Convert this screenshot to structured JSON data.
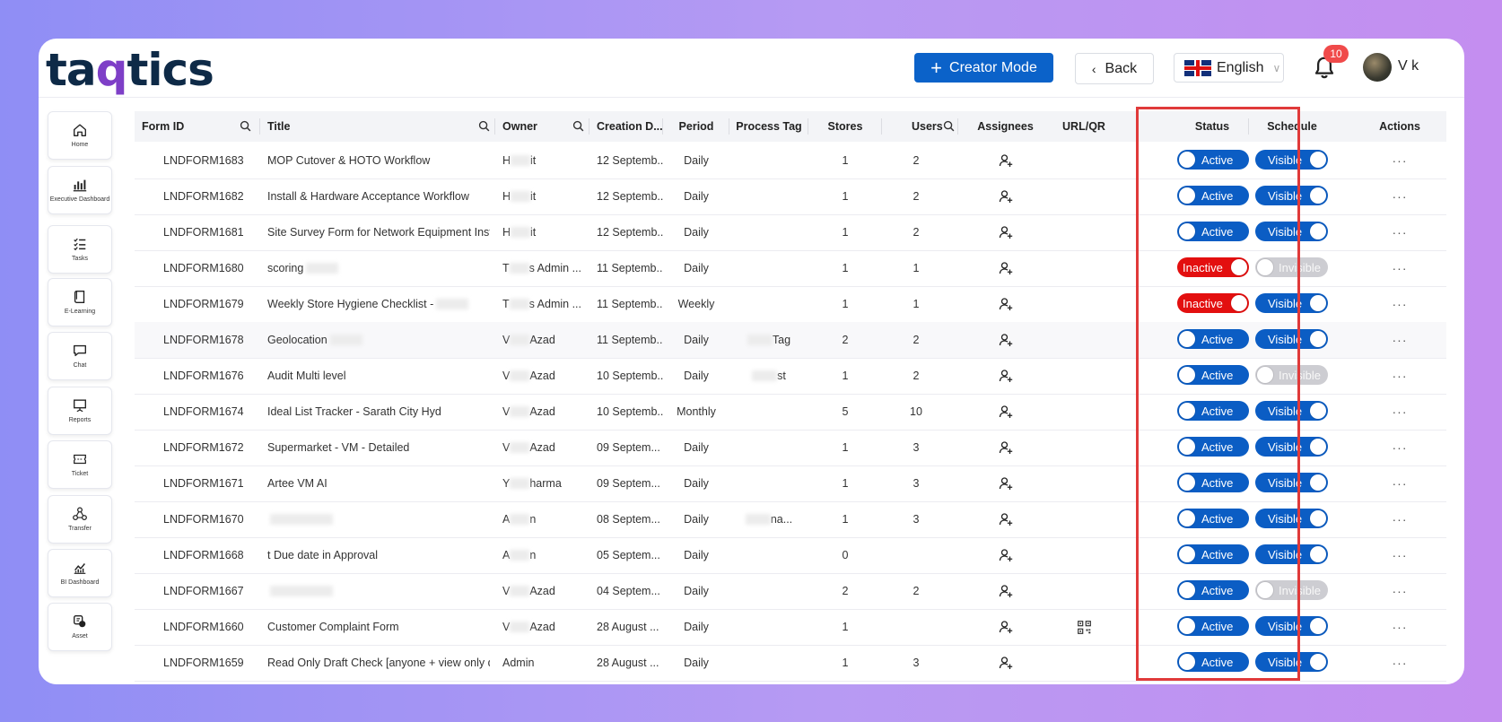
{
  "brand": {
    "logo_pre": "taq",
    "logo_q": "q",
    "logo_text": "tics"
  },
  "header": {
    "creator_label": "Creator Mode",
    "back_label": "Back",
    "language": "English",
    "notification_count": "10",
    "username": "V     k"
  },
  "sidebar": {
    "items": [
      {
        "label": "Home",
        "icon": "home-icon"
      },
      {
        "label": "Executive Dashboard",
        "icon": "bar-chart-icon"
      },
      {
        "label": "Tasks",
        "icon": "task-list-icon"
      },
      {
        "label": "E-Learning",
        "icon": "book-icon"
      },
      {
        "label": "Chat",
        "icon": "chat-icon"
      },
      {
        "label": "Reports",
        "icon": "presentation-icon"
      },
      {
        "label": "Ticket",
        "icon": "ticket-icon"
      },
      {
        "label": "Transfer",
        "icon": "transfer-icon"
      },
      {
        "label": "BI Dashboard",
        "icon": "line-chart-icon"
      },
      {
        "label": "Asset",
        "icon": "asset-icon"
      }
    ]
  },
  "table": {
    "columns": {
      "form_id": "Form ID",
      "title": "Title",
      "owner": "Owner",
      "creation": "Creation D...",
      "period": "Period",
      "process_tag": "Process Tag",
      "stores": "Stores",
      "users": "Users",
      "assignees": "Assignees",
      "url_qr": "URL/QR",
      "status": "Status",
      "schedule": "Schedule",
      "actions": "Actions"
    },
    "actions_glyph": "···",
    "rows": [
      {
        "id": "LNDFORM1683",
        "title": "MOP Cutover & HOTO Workflow",
        "owner_a": "H",
        "owner_b": "it",
        "date": "12 Septemb...",
        "period": "Daily",
        "tag": "",
        "stores": "1",
        "users": "2",
        "qr": false,
        "status": "Active",
        "schedule": "Visible"
      },
      {
        "id": "LNDFORM1682",
        "title": "Install & Hardware Acceptance Workflow",
        "owner_a": "H",
        "owner_b": "it",
        "date": "12 Septemb...",
        "period": "Daily",
        "tag": "",
        "stores": "1",
        "users": "2",
        "qr": false,
        "status": "Active",
        "schedule": "Visible"
      },
      {
        "id": "LNDFORM1681",
        "title": "Site Survey Form for Network Equipment Inst...",
        "owner_a": "H",
        "owner_b": "it",
        "date": "12 Septemb...",
        "period": "Daily",
        "tag": "",
        "stores": "1",
        "users": "2",
        "qr": false,
        "status": "Active",
        "schedule": "Visible"
      },
      {
        "id": "LNDFORM1680",
        "title": "scoring",
        "owner_a": "T",
        "owner_b": "s Admin ...",
        "date": "11 Septemb...",
        "period": "Daily",
        "tag": "",
        "stores": "1",
        "users": "1",
        "qr": false,
        "status": "Inactive",
        "schedule": "Invisible"
      },
      {
        "id": "LNDFORM1679",
        "title": "Weekly Store Hygiene Checklist - ",
        "owner_a": "T",
        "owner_b": "s Admin ...",
        "date": "11 Septemb...",
        "period": "Weekly",
        "tag": "",
        "stores": "1",
        "users": "1",
        "qr": false,
        "status": "Inactive",
        "schedule": "Visible"
      },
      {
        "id": "LNDFORM1678",
        "title": "Geolocation",
        "owner_a": "V",
        "owner_b": "Azad",
        "date": "11 Septemb...",
        "period": "Daily",
        "tag": "Tag",
        "stores": "2",
        "users": "2",
        "qr": false,
        "status": "Active",
        "schedule": "Visible"
      },
      {
        "id": "LNDFORM1676",
        "title": "Audit Multi level",
        "owner_a": "V",
        "owner_b": "Azad",
        "date": "10 Septemb...",
        "period": "Daily",
        "tag": "st",
        "stores": "1",
        "users": "2",
        "qr": false,
        "status": "Active",
        "schedule": "Invisible"
      },
      {
        "id": "LNDFORM1674",
        "title": "Ideal List Tracker - Sarath City Hyd",
        "owner_a": "V",
        "owner_b": "Azad",
        "date": "10 Septemb...",
        "period": "Monthly",
        "tag": "",
        "stores": "5",
        "users": "10",
        "qr": false,
        "status": "Active",
        "schedule": "Visible"
      },
      {
        "id": "LNDFORM1672",
        "title": "Supermarket - VM - Detailed",
        "owner_a": "V",
        "owner_b": "Azad",
        "date": "09 Septem...",
        "period": "Daily",
        "tag": "",
        "stores": "1",
        "users": "3",
        "qr": false,
        "status": "Active",
        "schedule": "Visible"
      },
      {
        "id": "LNDFORM1671",
        "title": "Artee VM AI",
        "owner_a": "Y",
        "owner_b": "harma",
        "date": "09 Septem...",
        "period": "Daily",
        "tag": "",
        "stores": "1",
        "users": "3",
        "qr": false,
        "status": "Active",
        "schedule": "Visible"
      },
      {
        "id": "LNDFORM1670",
        "title": "",
        "owner_a": "A",
        "owner_b": "n",
        "date": "08 Septem...",
        "period": "Daily",
        "tag": "na...",
        "stores": "1",
        "users": "3",
        "qr": false,
        "status": "Active",
        "schedule": "Visible"
      },
      {
        "id": "LNDFORM1668",
        "title": "t Due date in Approval",
        "owner_a": "A",
        "owner_b": "n",
        "date": "05 Septem...",
        "period": "Daily",
        "tag": "",
        "stores": "0",
        "users": "",
        "qr": false,
        "status": "Active",
        "schedule": "Visible"
      },
      {
        "id": "LNDFORM1667",
        "title": "",
        "owner_a": "V",
        "owner_b": "Azad",
        "date": "04 Septem...",
        "period": "Daily",
        "tag": "",
        "stores": "2",
        "users": "2",
        "qr": false,
        "status": "Active",
        "schedule": "Invisible"
      },
      {
        "id": "LNDFORM1660",
        "title": "Customer Complaint Form",
        "owner_a": "V",
        "owner_b": "Azad",
        "date": "28 August ...",
        "period": "Daily",
        "tag": "",
        "stores": "1",
        "users": "",
        "qr": true,
        "status": "Active",
        "schedule": "Visible"
      },
      {
        "id": "LNDFORM1659",
        "title": "Read Only Draft Check [anyone + view only d...",
        "owner_a": "Admin",
        "owner_b": "",
        "date": "28 August ...",
        "period": "Daily",
        "tag": "",
        "stores": "1",
        "users": "3",
        "qr": false,
        "status": "Active",
        "schedule": "Visible"
      }
    ]
  },
  "colors": {
    "accent": "#0b62c9",
    "toggle_on": "#0b5dc4",
    "toggle_inactive": "#e30f0f",
    "toggle_off": "#cdcdd2",
    "highlight": "#e03a3a"
  }
}
